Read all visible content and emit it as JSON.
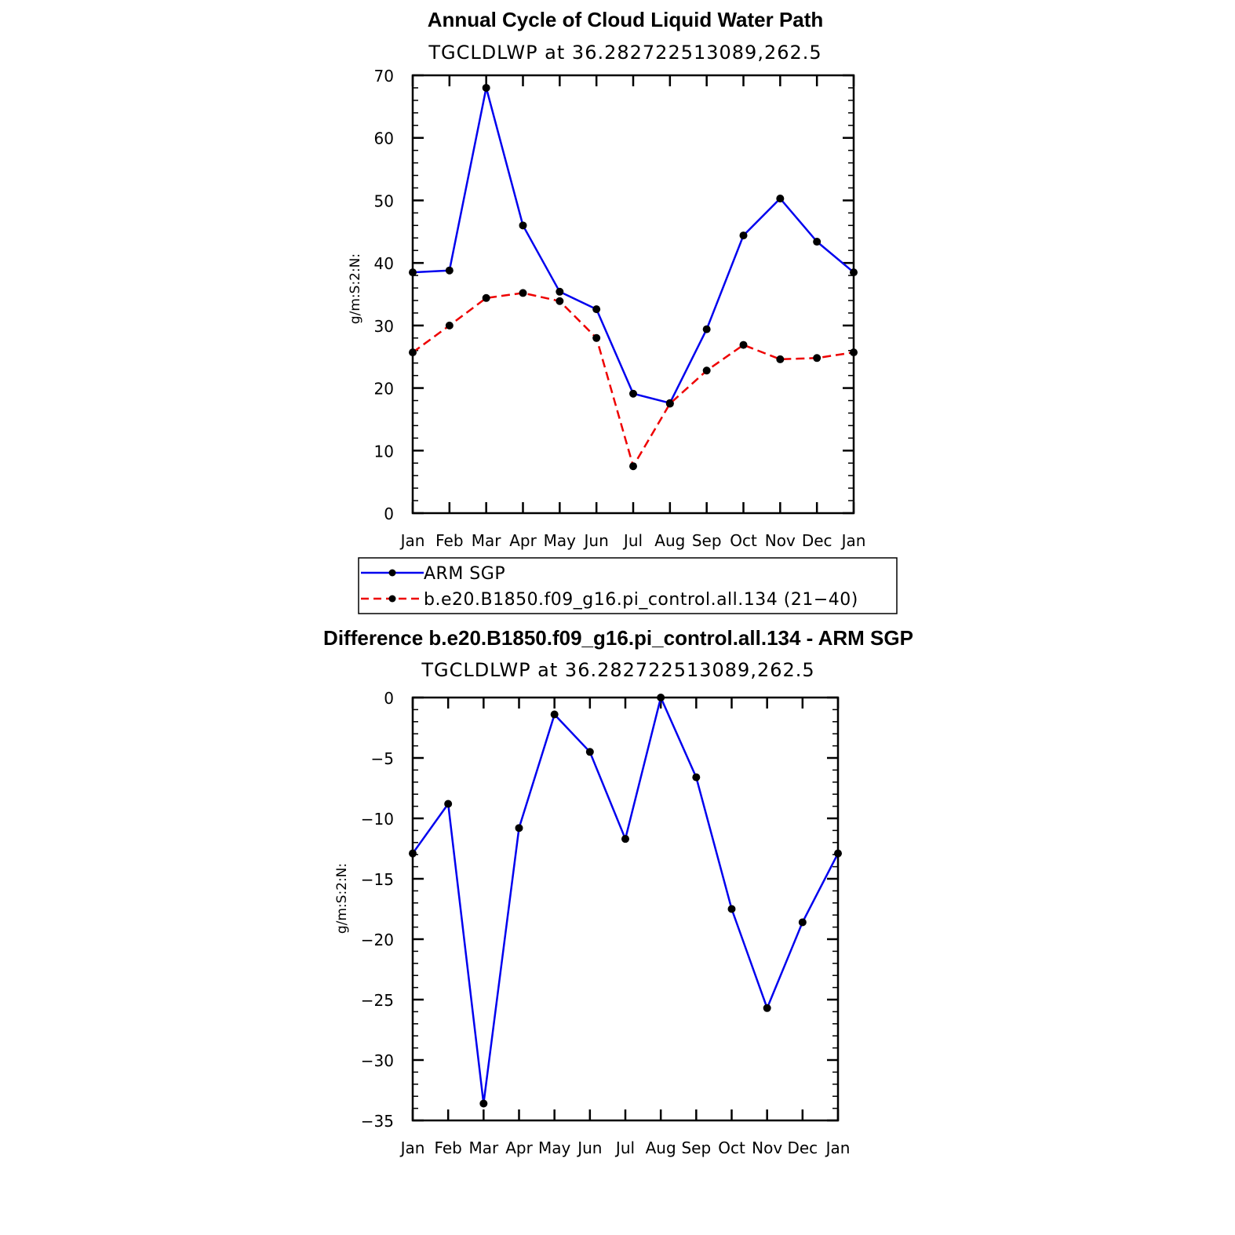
{
  "chart_data": [
    {
      "type": "line",
      "title": "Annual Cycle of Cloud Liquid Water Path",
      "subtitle": "TGCLDLWP  at  36.282722513089,262.5",
      "ylabel": "g/m:S:2:N:",
      "xlabel": "",
      "categories": [
        "Jan",
        "Feb",
        "Mar",
        "Apr",
        "May",
        "Jun",
        "Jul",
        "Aug",
        "Sep",
        "Oct",
        "Nov",
        "Dec",
        "Jan"
      ],
      "ylim": [
        0,
        70
      ],
      "yticks": [
        0,
        10,
        20,
        30,
        40,
        50,
        60,
        70
      ],
      "ytick_labels": [
        "0",
        "10",
        "20",
        "30",
        "40",
        "50",
        "60",
        "70"
      ],
      "series": [
        {
          "name": "ARM SGP",
          "color": "#0000ee",
          "dash": "solid",
          "values": [
            38.5,
            38.8,
            68.0,
            46.0,
            35.4,
            32.6,
            19.1,
            17.6,
            29.4,
            44.4,
            50.3,
            43.4,
            38.5
          ]
        },
        {
          "name": "b.e20.B1850.f09_g16.pi_control.all.134 (21−40)",
          "color": "#ee0000",
          "dash": "dashed",
          "values": [
            25.7,
            30.0,
            34.4,
            35.2,
            33.9,
            28.0,
            7.5,
            17.5,
            22.8,
            26.9,
            24.6,
            24.8,
            25.7
          ]
        }
      ],
      "legend": "below"
    },
    {
      "type": "line",
      "title": "Difference b.e20.B1850.f09_g16.pi_control.all.134 - ARM SGP",
      "subtitle": "TGCLDLWP  at  36.282722513089,262.5",
      "ylabel": "g/m:S:2:N:",
      "xlabel": "",
      "categories": [
        "Jan",
        "Feb",
        "Mar",
        "Apr",
        "May",
        "Jun",
        "Jul",
        "Aug",
        "Sep",
        "Oct",
        "Nov",
        "Dec",
        "Jan"
      ],
      "ylim": [
        -35,
        0
      ],
      "yticks": [
        0,
        -5,
        -10,
        -15,
        -20,
        -25,
        -30,
        -35
      ],
      "ytick_labels": [
        "0",
        "−5",
        "−10",
        "−15",
        "−20",
        "−25",
        "−30",
        "−35"
      ],
      "series": [
        {
          "name": "Difference",
          "color": "#0000ee",
          "dash": "solid",
          "values": [
            -12.9,
            -8.8,
            -33.6,
            -10.8,
            -1.4,
            -4.5,
            -11.7,
            0.0,
            -6.6,
            -17.5,
            -25.7,
            -18.6,
            -12.9
          ]
        }
      ]
    }
  ]
}
